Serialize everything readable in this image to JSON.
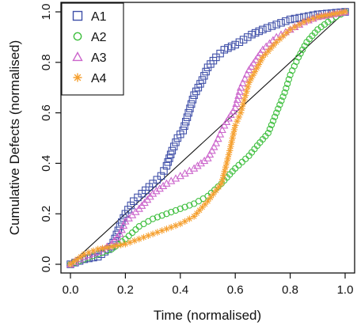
{
  "chart_data": {
    "type": "scatter",
    "title": "",
    "xlabel": "Time (normalised)",
    "ylabel": "Cumulative Defects (normalised)",
    "xlim": [
      0,
      1
    ],
    "ylim": [
      0,
      1
    ],
    "xticks": [
      "0.0",
      "0.2",
      "0.4",
      "0.6",
      "0.8",
      "1.0"
    ],
    "yticks": [
      "0.0",
      "0.2",
      "0.4",
      "0.6",
      "0.8",
      "1.0"
    ],
    "grid": false,
    "legend_position": "top-left",
    "reference_line": {
      "from": [
        0,
        0
      ],
      "to": [
        1,
        1
      ],
      "color": "#111111"
    },
    "series": [
      {
        "name": "A1",
        "color": "#3f4fa8",
        "marker": "square",
        "points": [
          [
            0,
            0
          ],
          [
            0.05,
            0.02
          ],
          [
            0.1,
            0.03
          ],
          [
            0.15,
            0.07
          ],
          [
            0.18,
            0.15
          ],
          [
            0.2,
            0.2
          ],
          [
            0.23,
            0.25
          ],
          [
            0.26,
            0.28
          ],
          [
            0.3,
            0.32
          ],
          [
            0.33,
            0.35
          ],
          [
            0.35,
            0.39
          ],
          [
            0.37,
            0.45
          ],
          [
            0.39,
            0.5
          ],
          [
            0.41,
            0.53
          ],
          [
            0.43,
            0.6
          ],
          [
            0.45,
            0.67
          ],
          [
            0.48,
            0.73
          ],
          [
            0.5,
            0.78
          ],
          [
            0.53,
            0.82
          ],
          [
            0.56,
            0.85
          ],
          [
            0.6,
            0.87
          ],
          [
            0.63,
            0.89
          ],
          [
            0.66,
            0.91
          ],
          [
            0.7,
            0.93
          ],
          [
            0.75,
            0.95
          ],
          [
            0.8,
            0.97
          ],
          [
            0.85,
            0.98
          ],
          [
            0.9,
            0.99
          ],
          [
            1,
            1
          ]
        ]
      },
      {
        "name": "A2",
        "color": "#3fbf3f",
        "marker": "circle",
        "points": [
          [
            0,
            0
          ],
          [
            0.05,
            0.02
          ],
          [
            0.1,
            0.04
          ],
          [
            0.15,
            0.06
          ],
          [
            0.2,
            0.1
          ],
          [
            0.25,
            0.15
          ],
          [
            0.3,
            0.18
          ],
          [
            0.35,
            0.2
          ],
          [
            0.4,
            0.22
          ],
          [
            0.45,
            0.24
          ],
          [
            0.5,
            0.27
          ],
          [
            0.55,
            0.32
          ],
          [
            0.6,
            0.38
          ],
          [
            0.65,
            0.43
          ],
          [
            0.68,
            0.47
          ],
          [
            0.72,
            0.52
          ],
          [
            0.75,
            0.6
          ],
          [
            0.78,
            0.68
          ],
          [
            0.8,
            0.75
          ],
          [
            0.83,
            0.82
          ],
          [
            0.86,
            0.88
          ],
          [
            0.9,
            0.93
          ],
          [
            0.95,
            0.97
          ],
          [
            1,
            1
          ]
        ]
      },
      {
        "name": "A3",
        "color": "#cc66cc",
        "marker": "triangle",
        "points": [
          [
            0,
            0
          ],
          [
            0.05,
            0.03
          ],
          [
            0.1,
            0.05
          ],
          [
            0.15,
            0.08
          ],
          [
            0.18,
            0.12
          ],
          [
            0.2,
            0.17
          ],
          [
            0.25,
            0.22
          ],
          [
            0.3,
            0.28
          ],
          [
            0.35,
            0.32
          ],
          [
            0.4,
            0.35
          ],
          [
            0.45,
            0.38
          ],
          [
            0.5,
            0.42
          ],
          [
            0.53,
            0.48
          ],
          [
            0.56,
            0.55
          ],
          [
            0.6,
            0.62
          ],
          [
            0.62,
            0.7
          ],
          [
            0.65,
            0.77
          ],
          [
            0.7,
            0.85
          ],
          [
            0.75,
            0.9
          ],
          [
            0.8,
            0.93
          ],
          [
            0.85,
            0.96
          ],
          [
            0.9,
            0.98
          ],
          [
            1,
            1
          ]
        ]
      },
      {
        "name": "A4",
        "color": "#f5a030",
        "marker": "asterisk",
        "points": [
          [
            0,
            0
          ],
          [
            0.05,
            0.04
          ],
          [
            0.1,
            0.06
          ],
          [
            0.15,
            0.07
          ],
          [
            0.2,
            0.08
          ],
          [
            0.25,
            0.1
          ],
          [
            0.3,
            0.12
          ],
          [
            0.35,
            0.14
          ],
          [
            0.4,
            0.16
          ],
          [
            0.45,
            0.19
          ],
          [
            0.5,
            0.25
          ],
          [
            0.55,
            0.32
          ],
          [
            0.58,
            0.45
          ],
          [
            0.6,
            0.55
          ],
          [
            0.62,
            0.6
          ],
          [
            0.65,
            0.72
          ],
          [
            0.7,
            0.82
          ],
          [
            0.75,
            0.88
          ],
          [
            0.8,
            0.93
          ],
          [
            0.85,
            0.96
          ],
          [
            0.9,
            0.98
          ],
          [
            1,
            1
          ]
        ]
      }
    ]
  }
}
